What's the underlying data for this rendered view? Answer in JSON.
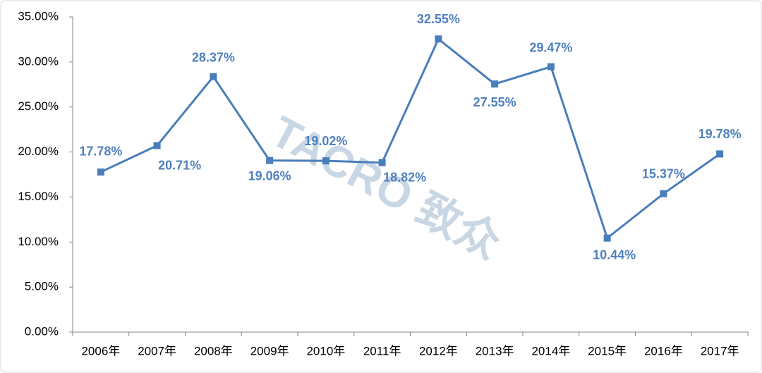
{
  "chart_data": {
    "type": "line",
    "watermark": "TACRO 致众",
    "categories": [
      "2006年",
      "2007年",
      "2008年",
      "2009年",
      "2010年",
      "2011年",
      "2012年",
      "2013年",
      "2014年",
      "2015年",
      "2016年",
      "2017年"
    ],
    "series": [
      {
        "color": "#4a7ebb",
        "values": [
          17.78,
          20.71,
          28.37,
          19.06,
          19.02,
          18.82,
          32.55,
          27.55,
          29.47,
          10.44,
          15.37,
          19.78
        ],
        "value_labels": [
          "17.78%",
          "20.71%",
          "28.37%",
          "19.06%",
          "19.02%",
          "18.82%",
          "32.55%",
          "27.55%",
          "29.47%",
          "10.44%",
          "15.37%",
          "19.78%"
        ]
      }
    ],
    "ylim": [
      0,
      35
    ],
    "yticks": [
      {
        "value": 0,
        "label": "0.00%"
      },
      {
        "value": 5,
        "label": "5.00%"
      },
      {
        "value": 10,
        "label": "10.00%"
      },
      {
        "value": 15,
        "label": "15.00%"
      },
      {
        "value": 20,
        "label": "20.00%"
      },
      {
        "value": 25,
        "label": "25.00%"
      },
      {
        "value": 30,
        "label": "30.00%"
      },
      {
        "value": 35,
        "label": "35.00%"
      }
    ],
    "grid": false
  }
}
